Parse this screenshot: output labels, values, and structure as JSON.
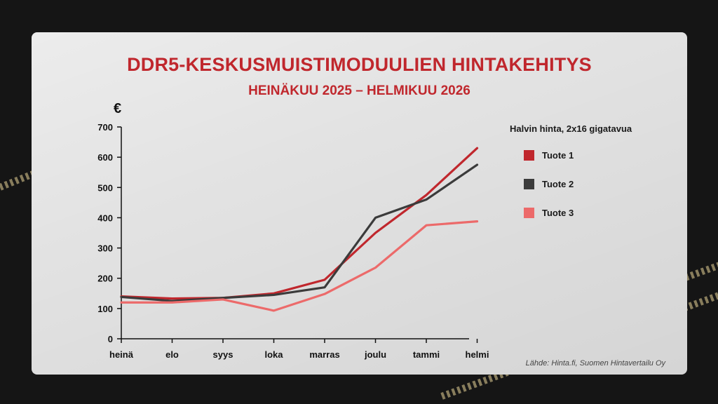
{
  "title": "DDR5-KESKUSMUISTIMODUULIEN HINTAKEHITYS",
  "subtitle": "HEINÄKUU 2025 – HELMIKUU 2026",
  "source": "Lähde: Hinta.fi, Suomen Hintavertailu Oy",
  "chart_data": {
    "type": "line",
    "title": "DDR5-KESKUSMUISTIMODUULIEN HINTAKEHITYS",
    "subtitle": "HEINÄKUU 2025 – HELMIKUU 2026",
    "ylabel": "€",
    "xlabel": "",
    "categories": [
      "heinä",
      "elo",
      "syys",
      "loka",
      "marras",
      "joulu",
      "tammi",
      "helmi"
    ],
    "ylim": [
      0,
      700
    ],
    "yticks": [
      0,
      100,
      200,
      300,
      400,
      500,
      600,
      700
    ],
    "grid": false,
    "legend_position": "right",
    "legend_title": "Halvin hinta, 2x16 gigatavua",
    "series": [
      {
        "name": "Tuote 1",
        "color": "#c0272d",
        "values": [
          140,
          133,
          135,
          150,
          195,
          350,
          475,
          630
        ]
      },
      {
        "name": "Tuote 2",
        "color": "#3b3b3b",
        "values": [
          138,
          125,
          135,
          145,
          170,
          400,
          460,
          575
        ]
      },
      {
        "name": "Tuote 3",
        "color": "#ec6a6a",
        "values": [
          120,
          120,
          130,
          93,
          148,
          235,
          375,
          388
        ]
      }
    ]
  }
}
